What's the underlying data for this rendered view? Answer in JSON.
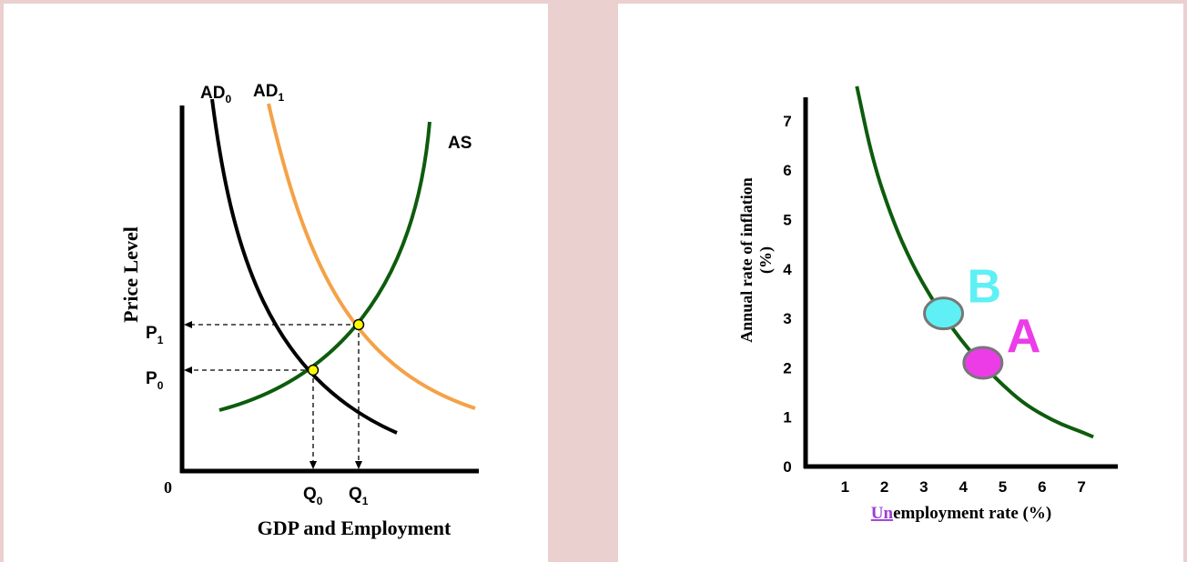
{
  "chart_data": [
    {
      "type": "line",
      "xlabel": "GDP and Employment",
      "ylabel": "Price Level",
      "origin_label": "0",
      "curve_labels": {
        "ad0": {
          "base": "AD",
          "sub": "0"
        },
        "ad1": {
          "base": "AD",
          "sub": "1"
        },
        "as": "AS"
      },
      "price_labels": [
        {
          "base": "P",
          "sub": "1"
        },
        {
          "base": "P",
          "sub": "0"
        }
      ],
      "quantity_labels": [
        {
          "base": "Q",
          "sub": "0"
        },
        {
          "base": "Q",
          "sub": "1"
        }
      ],
      "equilibria": [
        {
          "label": "P0/Q0",
          "demand": "AD0"
        },
        {
          "label": "P1/Q1",
          "demand": "AD1"
        }
      ],
      "grid": false,
      "colors": {
        "AD0": "#000000",
        "AD1": "#f4a247",
        "AS": "#0d5c0d",
        "point": "#ffff00"
      }
    },
    {
      "type": "line",
      "xlabel_prefix": "Un",
      "xlabel_rest": "employment rate (%)",
      "ylabel_line1": "Annual rate of inflation",
      "ylabel_line2": "(%)",
      "x_ticks": [
        "1",
        "2",
        "3",
        "4",
        "5",
        "6",
        "7"
      ],
      "y_ticks": [
        "0",
        "1",
        "2",
        "3",
        "4",
        "5",
        "6",
        "7"
      ],
      "xlim": [
        0,
        7.8
      ],
      "ylim": [
        0,
        7.5
      ],
      "series": [
        {
          "x": [
            1.3,
            1.7,
            2.2,
            2.7,
            3.2,
            3.5,
            4.0,
            4.5,
            5.0,
            5.5,
            6.0,
            6.5,
            7.0,
            7.3
          ],
          "y": [
            7.7,
            6.2,
            5.0,
            4.1,
            3.4,
            3.05,
            2.5,
            2.05,
            1.65,
            1.3,
            1.05,
            0.85,
            0.7,
            0.6
          ]
        }
      ],
      "points": [
        {
          "label": "B",
          "x": 3.5,
          "y": 3.1,
          "color": "#5ff0f5"
        },
        {
          "label": "A",
          "x": 4.5,
          "y": 2.1,
          "color": "#ec3ce8"
        }
      ],
      "grid": false,
      "colors": {
        "curve": "#0d5c0d",
        "prefix": "#9b3dd6"
      }
    }
  ]
}
